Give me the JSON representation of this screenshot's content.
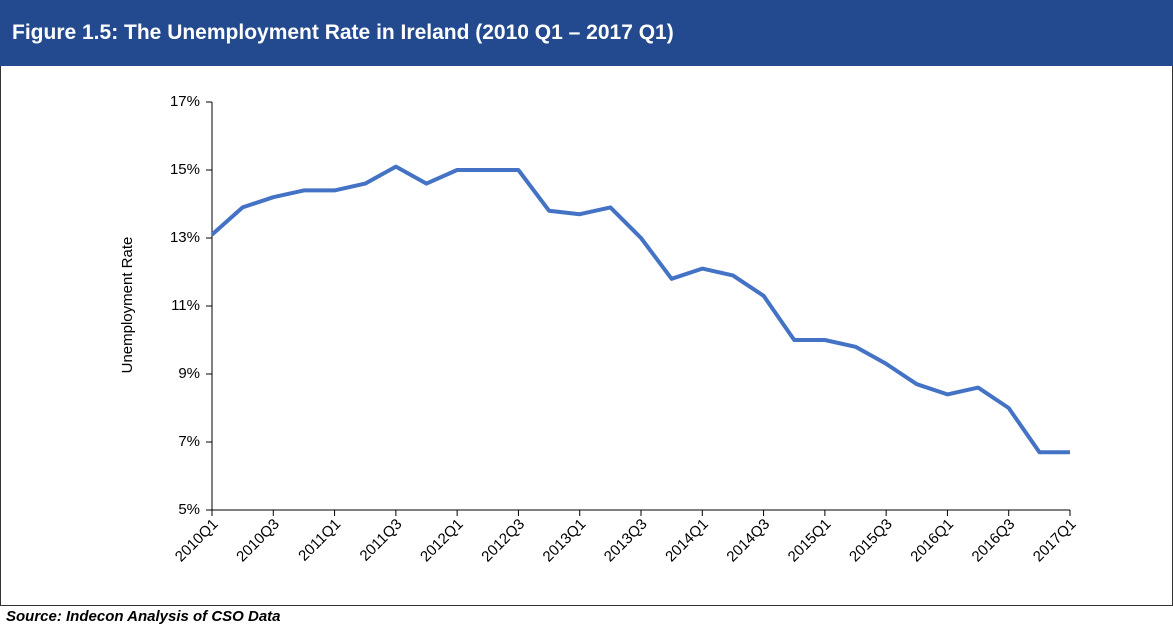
{
  "header": {
    "title": "Figure 1.5: The Unemployment Rate in Ireland (2010 Q1 – 2017 Q1)"
  },
  "chart_data": {
    "type": "line",
    "y_label": "Unemployment Rate",
    "categories": [
      "2010Q1",
      null,
      "2010Q3",
      null,
      "2011Q1",
      null,
      "2011Q3",
      null,
      "2012Q1",
      null,
      "2012Q3",
      null,
      "2013Q1",
      null,
      "2013Q3",
      null,
      "2014Q1",
      null,
      "2014Q3",
      null,
      "2015Q1",
      null,
      "2015Q3",
      null,
      "2016Q1",
      null,
      "2016Q3",
      null,
      "2017Q1"
    ],
    "values": [
      13.1,
      13.9,
      14.2,
      14.4,
      14.4,
      14.6,
      15.1,
      14.6,
      15.0,
      15.0,
      15.0,
      13.8,
      13.7,
      13.9,
      13.0,
      11.8,
      12.1,
      11.9,
      11.3,
      10.0,
      10.0,
      9.8,
      9.3,
      8.7,
      8.4,
      8.6,
      8.0,
      6.7,
      6.7
    ],
    "color": "#4472c4",
    "ylim": [
      5,
      17
    ],
    "yticks": [
      {
        "value": 5,
        "label": "5%"
      },
      {
        "value": 7,
        "label": "7%"
      },
      {
        "value": 9,
        "label": "9%"
      },
      {
        "value": 11,
        "label": "11%"
      },
      {
        "value": 13,
        "label": "13%"
      },
      {
        "value": 15,
        "label": "15%"
      },
      {
        "value": 17,
        "label": "17%"
      }
    ],
    "grid": false
  },
  "footer": {
    "source": "Source: Indecon Analysis of CSO Data"
  }
}
